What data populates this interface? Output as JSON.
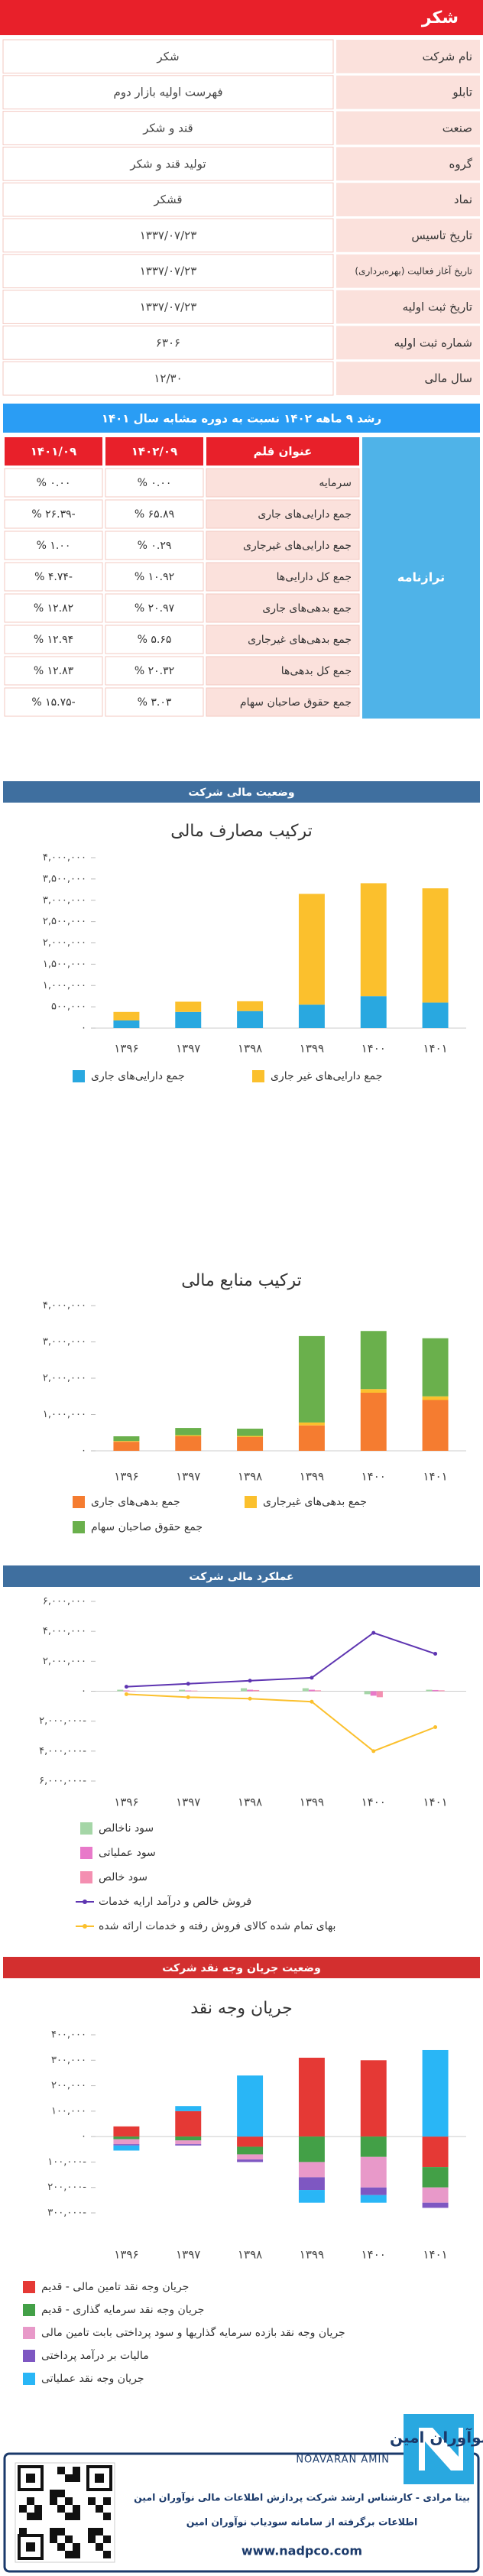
{
  "header": {
    "title": "شکر"
  },
  "info": {
    "rows": [
      [
        "نام شرکت",
        "شکر"
      ],
      [
        "تابلو",
        "فهرست اولیه بازار دوم"
      ],
      [
        "صنعت",
        "قند و شکر"
      ],
      [
        "گروه",
        "تولید قند و شکر"
      ],
      [
        "نماد",
        "قشکر"
      ],
      [
        "تاریخ تاسیس",
        "۱۳۳۷/۰۷/۲۳"
      ],
      [
        "تاریخ آغاز فعالیت (بهره‌برداری)",
        "۱۳۳۷/۰۷/۲۳"
      ],
      [
        "تاریخ ثبت اولیه",
        "۱۳۳۷/۰۷/۲۳"
      ],
      [
        "شماره ثبت اولیه",
        "۶۳۰۶"
      ],
      [
        "سال مالی",
        "۱۲/۳۰"
      ]
    ]
  },
  "growth": {
    "title": "رشد ۹ ماهه ۱۴۰۲ نسبت به دوره مشابه سال ۱۴۰۱",
    "section": "ترازنامه",
    "columns": [
      "عنوان قلم",
      "۱۴۰۲/۰۹",
      "۱۴۰۱/۰۹"
    ],
    "rows": [
      [
        "سرمایه",
        "۰.۰۰ %",
        "۰.۰۰ %"
      ],
      [
        "جمع دارایی‌های جاری",
        "۶۵.۸۹ %",
        "-۲۶.۳۹ %"
      ],
      [
        "جمع دارایی‌های غیرجاری",
        "۰.۲۹ %",
        "۱.۰۰ %"
      ],
      [
        "جمع کل دارایی‌ها",
        "۱۰.۹۲ %",
        "-۴.۷۴ %"
      ],
      [
        "جمع بدهی‌های جاری",
        "۲۰.۹۷ %",
        "۱۲.۸۲ %"
      ],
      [
        "جمع بدهی‌های غیرجاری",
        "۵.۶۵ %",
        "۱۲.۹۴ %"
      ],
      [
        "جمع کل بدهی‌ها",
        "۲۰.۳۲ %",
        "۱۲.۸۳ %"
      ],
      [
        "جمع حقوق صاحبان سهام",
        "۳.۰۳ %",
        "-۱۵.۷۵ %"
      ]
    ]
  },
  "sections": [
    "وضعیت مالی شرکت",
    "عملکرد مالی شرکت",
    "وضعیت جریان وجه نقد شرکت"
  ],
  "chart_data": [
    {
      "type": "stacked_bar",
      "title": "ترکیب مصارف مالی",
      "categories": [
        "۱۳۹۶",
        "۱۳۹۷",
        "۱۳۹۸",
        "۱۳۹۹",
        "۱۴۰۰",
        "۱۴۰۱"
      ],
      "series": [
        {
          "name": "جمع دارایی‌های جاری",
          "color": "#29a8e0",
          "values": [
            180000,
            380000,
            400000,
            550000,
            750000,
            600000
          ]
        },
        {
          "name": "جمع دارایی‌های غیر جاری",
          "color": "#fbc02d",
          "values": [
            200000,
            240000,
            230000,
            2600000,
            2650000,
            2680000
          ]
        }
      ],
      "ylim": [
        0,
        4000000
      ],
      "yticks": [
        {
          "value": 0,
          "label": "۰"
        },
        {
          "value": 500000,
          "label": "۵۰۰,۰۰۰"
        },
        {
          "value": 1000000,
          "label": "۱,۰۰۰,۰۰۰"
        },
        {
          "value": 1500000,
          "label": "۱,۵۰۰,۰۰۰"
        },
        {
          "value": 2000000,
          "label": "۲,۰۰۰,۰۰۰"
        },
        {
          "value": 2500000,
          "label": "۲,۵۰۰,۰۰۰"
        },
        {
          "value": 3000000,
          "label": "۳,۰۰۰,۰۰۰"
        },
        {
          "value": 3500000,
          "label": "۳,۵۰۰,۰۰۰"
        },
        {
          "value": 4000000,
          "label": "۴,۰۰۰,۰۰۰"
        }
      ],
      "grid": false
    },
    {
      "type": "stacked_bar",
      "title": "ترکیب منابع مالی",
      "categories": [
        "۱۳۹۶",
        "۱۳۹۷",
        "۱۳۹۸",
        "۱۳۹۹",
        "۱۴۰۰",
        "۱۴۰۱"
      ],
      "series": [
        {
          "name": "جمع بدهی‌های جاری",
          "color": "#f57c30",
          "values": [
            250000,
            400000,
            380000,
            700000,
            1600000,
            1400000
          ]
        },
        {
          "name": "جمع بدهی‌های غیرجاری",
          "color": "#fbc02d",
          "values": [
            20000,
            30000,
            30000,
            80000,
            100000,
            100000
          ]
        },
        {
          "name": "جمع حقوق صاحبان سهام",
          "color": "#6ab04c",
          "values": [
            130000,
            200000,
            200000,
            2380000,
            1600000,
            1600000
          ]
        }
      ],
      "ylim": [
        0,
        4000000
      ],
      "yticks": [
        {
          "value": 0,
          "label": "۰"
        },
        {
          "value": 1000000,
          "label": "۱,۰۰۰,۰۰۰"
        },
        {
          "value": 2000000,
          "label": "۲,۰۰۰,۰۰۰"
        },
        {
          "value": 3000000,
          "label": "۳,۰۰۰,۰۰۰"
        },
        {
          "value": 4000000,
          "label": "۴,۰۰۰,۰۰۰"
        }
      ],
      "grid": false
    },
    {
      "type": "combo",
      "categories": [
        "۱۳۹۶",
        "۱۳۹۷",
        "۱۳۹۸",
        "۱۳۹۹",
        "۱۴۰۰",
        "۱۴۰۱"
      ],
      "series": [
        {
          "name": "سود ناخالص",
          "type": "bar",
          "color": "#a5d6a7",
          "values": [
            100000,
            100000,
            200000,
            200000,
            -200000,
            100000
          ]
        },
        {
          "name": "سود عملیاتی",
          "type": "bar",
          "color": "#e879c9",
          "values": [
            50000,
            50000,
            100000,
            100000,
            -300000,
            80000
          ]
        },
        {
          "name": "سود خالص",
          "type": "bar",
          "color": "#f48fb1",
          "values": [
            30000,
            40000,
            80000,
            60000,
            -400000,
            60000
          ]
        },
        {
          "name": "فروش خالص و درآمد ارایه خدمات",
          "type": "line",
          "color": "#5e35b1",
          "values": [
            300000,
            500000,
            700000,
            900000,
            3900000,
            2500000
          ]
        },
        {
          "name": "بهای تمام شده کالای فروش رفته و خدمات ارائه شده",
          "type": "line",
          "color": "#fbc02d",
          "values": [
            -200000,
            -400000,
            -500000,
            -700000,
            -4000000,
            -2400000
          ]
        }
      ],
      "ylim": [
        -6000000,
        6000000
      ],
      "yticks": [
        {
          "value": -6000000,
          "label": "۶,۰۰۰,۰۰۰-"
        },
        {
          "value": -4000000,
          "label": "۴,۰۰۰,۰۰۰-"
        },
        {
          "value": -2000000,
          "label": "۲,۰۰۰,۰۰۰-"
        },
        {
          "value": 0,
          "label": "۰"
        },
        {
          "value": 2000000,
          "label": "۲,۰۰۰,۰۰۰"
        },
        {
          "value": 4000000,
          "label": "۴,۰۰۰,۰۰۰"
        },
        {
          "value": 6000000,
          "label": "۶,۰۰۰,۰۰۰"
        }
      ],
      "grid": false
    },
    {
      "type": "stacked_bar",
      "title": "جریان وجه نقد",
      "categories": [
        "۱۳۹۶",
        "۱۳۹۷",
        "۱۳۹۸",
        "۱۳۹۹",
        "۱۴۰۰",
        "۱۴۰۱"
      ],
      "series": [
        {
          "name": "جریان وجه نقد تامین مالی - قدیم",
          "color": "#e53935",
          "values": [
            40000,
            100000,
            -40000,
            310000,
            300000,
            -120000
          ]
        },
        {
          "name": "جریان وجه نقد سرمایه گذاری - قدیم",
          "color": "#43a047",
          "values": [
            -10000,
            -15000,
            -30000,
            -100000,
            -80000,
            -80000
          ]
        },
        {
          "name": "جریان وجه نقد بازده سرمایه گذاریها و سود پرداختی بابت تامین مالی",
          "color": "#e899c9",
          "values": [
            -20000,
            -15000,
            -20000,
            -60000,
            -120000,
            -60000
          ]
        },
        {
          "name": "مالیات بر درآمد پرداختی",
          "color": "#7e57c2",
          "values": [
            -5000,
            -5000,
            -10000,
            -50000,
            -30000,
            -20000
          ]
        },
        {
          "name": "جریان وجه نقد عملیاتی",
          "color": "#29b6f6",
          "values": [
            -20000,
            20000,
            240000,
            -50000,
            -30000,
            340000
          ]
        }
      ],
      "ylim": [
        -300000,
        400000
      ],
      "yticks": [
        {
          "value": -300000,
          "label": "۳۰۰,۰۰۰-"
        },
        {
          "value": -200000,
          "label": "۲۰۰,۰۰۰-"
        },
        {
          "value": -100000,
          "label": "۱۰۰,۰۰۰-"
        },
        {
          "value": 0,
          "label": "۰"
        },
        {
          "value": 100000,
          "label": "۱۰۰,۰۰۰"
        },
        {
          "value": 200000,
          "label": "۲۰۰,۰۰۰"
        },
        {
          "value": 300000,
          "label": "۳۰۰,۰۰۰"
        },
        {
          "value": 400000,
          "label": "۴۰۰,۰۰۰"
        }
      ],
      "grid": false
    }
  ],
  "footer": {
    "brand": "نوآوران امین",
    "brand_en": "NOAVARAN AMIN",
    "author": "بیتا مرادی - کارشناس ارشد شرکت پردازش اطلاعات مالی نوآوران امین",
    "source": "اطلاعات برگرفته از سامانه سودیاب نوآوران امین",
    "url": "www.nadpco.com"
  }
}
